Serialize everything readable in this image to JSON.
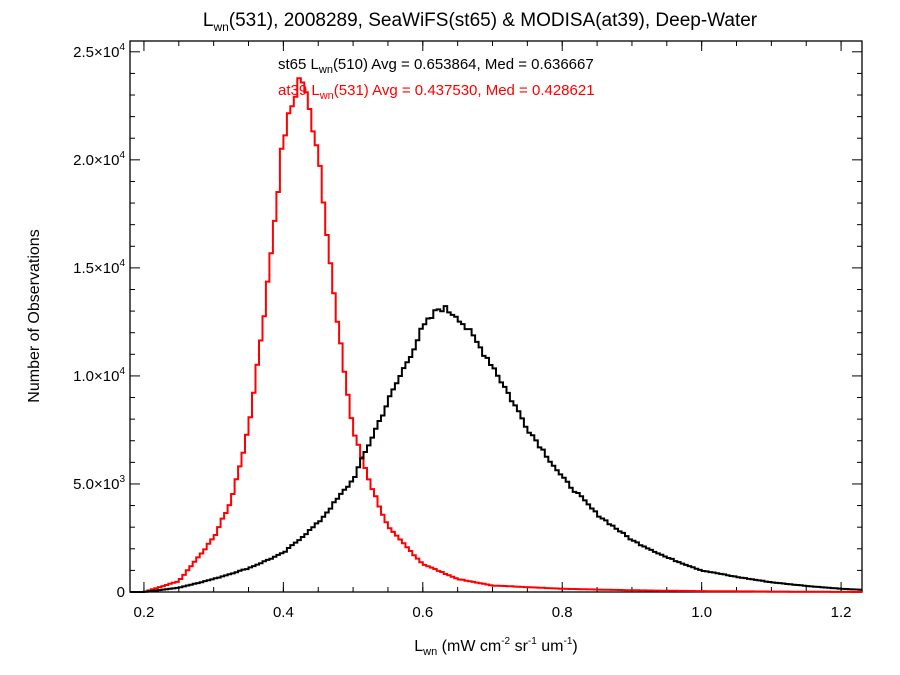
{
  "chart_data": {
    "type": "histogram",
    "title": {
      "prefix": "L",
      "sub": "wn",
      "rest": "(531), 2008289, SeaWiFS(st65) & MODISA(at39), Deep-Water"
    },
    "xlabel": {
      "l": "L",
      "sub": "wn",
      "a": " (mW cm",
      "sup1": "-2",
      "b": " sr",
      "sup2": "-1",
      "c": " um",
      "sup3": "-1",
      "d": ")"
    },
    "ylabel": "Number of Observations",
    "xlim": [
      0.18,
      1.23
    ],
    "ylim": [
      0,
      25500
    ],
    "x_ticks": [
      {
        "value": 0.2,
        "label": "0.2"
      },
      {
        "value": 0.4,
        "label": "0.4"
      },
      {
        "value": 0.6,
        "label": "0.6"
      },
      {
        "value": 0.8,
        "label": "0.8"
      },
      {
        "value": 1.0,
        "label": "1.0"
      },
      {
        "value": 1.2,
        "label": "1.2"
      }
    ],
    "y_ticks": [
      {
        "value": 0,
        "mant": "0",
        "exp": ""
      },
      {
        "value": 5000,
        "mant": "5.0×10",
        "exp": "3"
      },
      {
        "value": 10000,
        "mant": "1.0×10",
        "exp": "4"
      },
      {
        "value": 15000,
        "mant": "1.5×10",
        "exp": "4"
      },
      {
        "value": 20000,
        "mant": "2.0×10",
        "exp": "4"
      },
      {
        "value": 25000,
        "mant": "2.5×10",
        "exp": "4"
      }
    ],
    "bin_width": 0.005,
    "annotations": [
      {
        "a": "st65 L",
        "sub": "wn",
        "b": "(510) Avg = 0.653864, Med = 0.636667",
        "color": "#000000"
      },
      {
        "a": "at39 L",
        "sub": "wn",
        "b": "(531) Avg = 0.437530, Med = 0.428621",
        "color": "#ff0000"
      }
    ],
    "series": [
      {
        "color": "#000000",
        "x": [
          0.2,
          0.25,
          0.3,
          0.35,
          0.4,
          0.45,
          0.5,
          0.55,
          0.6,
          0.625,
          0.65,
          0.7,
          0.75,
          0.8,
          0.85,
          0.9,
          0.95,
          1.0,
          1.05,
          1.1,
          1.15,
          1.2,
          1.23
        ],
        "values": [
          0,
          200,
          600,
          1100,
          1800,
          3200,
          5200,
          8800,
          12200,
          13200,
          12800,
          10500,
          7600,
          5300,
          3600,
          2400,
          1600,
          1000,
          700,
          450,
          280,
          150,
          100
        ]
      },
      {
        "color": "#ff0000",
        "x": [
          0.2,
          0.25,
          0.3,
          0.325,
          0.35,
          0.375,
          0.4,
          0.425,
          0.45,
          0.475,
          0.5,
          0.525,
          0.55,
          0.6,
          0.65,
          0.7,
          0.8,
          0.9,
          1.0,
          1.1,
          1.23
        ],
        "values": [
          0,
          500,
          2500,
          4200,
          7500,
          13500,
          21000,
          24000,
          20500,
          13000,
          7500,
          5000,
          3000,
          1300,
          600,
          300,
          150,
          80,
          40,
          20,
          0
        ]
      }
    ]
  }
}
